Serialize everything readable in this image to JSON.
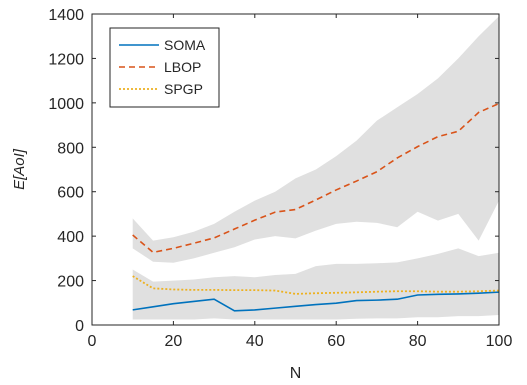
{
  "chart_data": {
    "type": "line",
    "xlabel": "N",
    "ylabel": "E[AoI]",
    "xlim": [
      0,
      100
    ],
    "ylim": [
      0,
      1400
    ],
    "xticks": [
      0,
      20,
      40,
      60,
      80,
      100
    ],
    "yticks": [
      0,
      200,
      400,
      600,
      800,
      1000,
      1200,
      1400
    ],
    "xtick_labels": [
      "0",
      "20",
      "40",
      "60",
      "80",
      "100"
    ],
    "ytick_labels": [
      "0",
      "200",
      "400",
      "600",
      "800",
      "1000",
      "1200",
      "1400"
    ],
    "legend_position": "top-left",
    "grid": false,
    "series": [
      {
        "name": "SOMA",
        "color": "#0072BD",
        "style": "solid",
        "x": [
          10,
          15,
          20,
          25,
          30,
          35,
          40,
          45,
          50,
          55,
          60,
          65,
          70,
          75,
          80,
          85,
          90,
          95,
          100
        ],
        "values": [
          68,
          82,
          96,
          106,
          116,
          64,
          68,
          76,
          84,
          92,
          98,
          110,
          112,
          116,
          135,
          138,
          140,
          143,
          148
        ]
      },
      {
        "name": "LBOP",
        "color": "#D95319",
        "style": "dashed",
        "x": [
          10,
          15,
          20,
          25,
          30,
          35,
          40,
          45,
          50,
          55,
          60,
          65,
          70,
          75,
          80,
          85,
          90,
          95,
          100
        ],
        "values": [
          405,
          327,
          345,
          368,
          392,
          432,
          472,
          508,
          520,
          563,
          608,
          648,
          690,
          752,
          803,
          848,
          872,
          957,
          997
        ]
      },
      {
        "name": "SPGP",
        "color": "#EDB120",
        "style": "dotted",
        "x": [
          10,
          15,
          20,
          25,
          30,
          35,
          40,
          45,
          50,
          55,
          60,
          65,
          70,
          75,
          80,
          85,
          90,
          95,
          100
        ],
        "values": [
          220,
          165,
          160,
          158,
          158,
          157,
          157,
          155,
          140,
          143,
          145,
          147,
          150,
          152,
          152,
          150,
          150,
          152,
          155
        ]
      }
    ],
    "bands": [
      {
        "color": "#e0e0e0",
        "x": [
          10,
          15,
          20,
          25,
          30,
          35,
          40,
          45,
          50,
          55,
          60,
          65,
          70,
          75,
          80,
          85,
          90,
          95,
          100
        ],
        "lower": [
          345,
          285,
          280,
          300,
          325,
          350,
          385,
          400,
          390,
          425,
          455,
          465,
          460,
          440,
          510,
          470,
          500,
          380,
          560
        ],
        "upper": [
          480,
          380,
          395,
          420,
          455,
          510,
          560,
          600,
          660,
          700,
          760,
          830,
          920,
          980,
          1040,
          1110,
          1200,
          1300,
          1390
        ]
      },
      {
        "color": "#e0e0e0",
        "x": [
          10,
          15,
          20,
          25,
          30,
          35,
          40,
          45,
          50,
          55,
          60,
          65,
          70,
          75,
          80,
          85,
          90,
          95,
          100
        ],
        "lower": [
          25,
          25,
          25,
          25,
          30,
          25,
          25,
          25,
          25,
          25,
          25,
          28,
          30,
          30,
          35,
          35,
          40,
          40,
          45
        ],
        "upper": [
          250,
          195,
          200,
          205,
          215,
          220,
          215,
          225,
          230,
          265,
          275,
          275,
          278,
          282,
          300,
          320,
          345,
          310,
          325
        ]
      }
    ]
  }
}
